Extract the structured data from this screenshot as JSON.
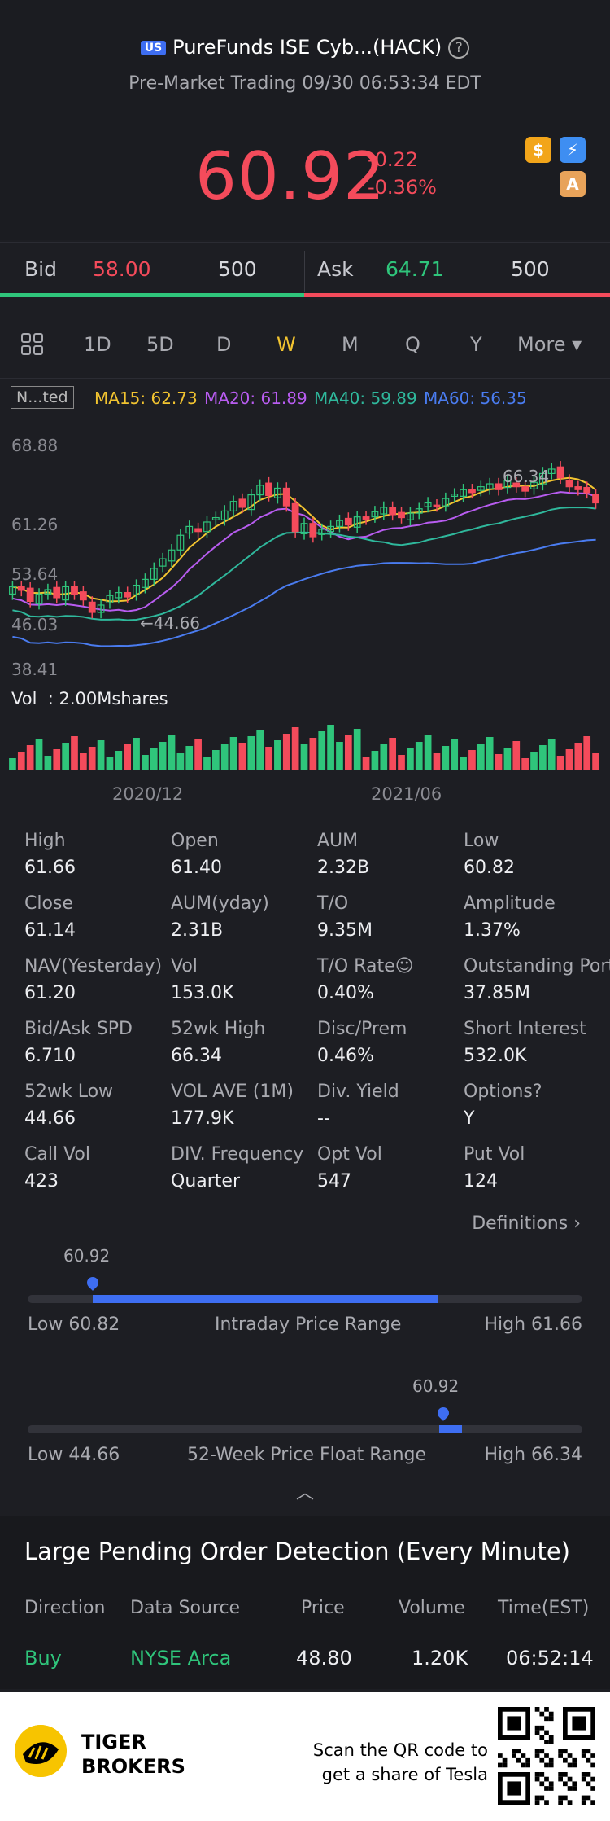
{
  "header": {
    "market_badge": "US",
    "title": "PureFunds ISE Cyb...(HACK)",
    "subtitle": "Pre-Market Trading 09/30 06:53:34 EDT",
    "price": "60.92",
    "change": "-0.22",
    "change_pct": "-0.36%",
    "icon_dollar": "$",
    "icon_flash": "⚡",
    "icon_a": "A"
  },
  "bidask": {
    "bid_label": "Bid",
    "bid_price": "58.00",
    "bid_size": "500",
    "ask_label": "Ask",
    "ask_price": "64.71",
    "ask_size": "500"
  },
  "tabs": [
    "1D",
    "5D",
    "D",
    "W",
    "M",
    "Q",
    "Y"
  ],
  "tabs_more": "More ▾",
  "active_tab": "W",
  "indicators": {
    "adj": "N...ted",
    "ma15": "MA15: 62.73",
    "ma20": "MA20: 61.89",
    "ma40": "MA40: 59.89",
    "ma60": "MA60: 56.35"
  },
  "chart_data": {
    "type": "candlestick",
    "y_ticks": [
      "68.88",
      "61.26",
      "53.64",
      "46.03",
      "38.41"
    ],
    "high_marker": "66.34",
    "low_marker": "44.66",
    "volume_label": "Vol  : 2.00Mshares",
    "x_ticks": [
      "2020/12",
      "2021/06"
    ],
    "ylim": [
      38.41,
      68.88
    ],
    "colors": {
      "up": "#2fc57b",
      "down": "#f44b5b",
      "ma15": "#f2c430",
      "ma20": "#b85cf0",
      "ma40": "#2fb89c",
      "ma60": "#4a7cf0"
    }
  },
  "stats": [
    [
      {
        "l": "High",
        "v": "61.66"
      },
      {
        "l": "Open",
        "v": "61.40"
      },
      {
        "l": "AUM",
        "v": "2.32B"
      },
      {
        "l": "Low",
        "v": "60.82"
      }
    ],
    [
      {
        "l": "Close",
        "v": "61.14"
      },
      {
        "l": "AUM(yday)",
        "v": "2.31B"
      },
      {
        "l": "T/O",
        "v": "9.35M"
      },
      {
        "l": "Amplitude",
        "v": "1.37%"
      }
    ],
    [
      {
        "l": "NAV(Yesterday)",
        "v": "61.20"
      },
      {
        "l": "Vol",
        "v": "153.0K"
      },
      {
        "l": "T/O Rate☺",
        "v": "0.40%"
      },
      {
        "l": "Outstanding Port",
        "v": "37.85M"
      }
    ],
    [
      {
        "l": "Bid/Ask SPD",
        "v": "6.710"
      },
      {
        "l": "52wk High",
        "v": "66.34"
      },
      {
        "l": "Disc/Prem",
        "v": "0.46%"
      },
      {
        "l": "Short Interest",
        "v": "532.0K"
      }
    ],
    [
      {
        "l": "52wk Low",
        "v": "44.66"
      },
      {
        "l": "VOL AVE (1M)",
        "v": "177.9K"
      },
      {
        "l": "Div. Yield",
        "v": "--"
      },
      {
        "l": "Options?",
        "v": "Y"
      }
    ],
    [
      {
        "l": "Call Vol",
        "v": "423"
      },
      {
        "l": "DIV. Frequency",
        "v": "Quarter"
      },
      {
        "l": "Opt Vol",
        "v": "547"
      },
      {
        "l": "Put Vol",
        "v": "124"
      }
    ]
  ],
  "definitions": "Definitions ›",
  "intraday": {
    "current": "60.92",
    "low": "Low 60.82",
    "label": "Intraday Price Range",
    "high": "High 61.66",
    "position": 0.12
  },
  "week52": {
    "current": "60.92",
    "low": "Low 44.66",
    "label": "52-Week Price Float Range",
    "high": "High 66.34",
    "position": 0.75
  },
  "collapse": "︿",
  "large_orders": {
    "title": "Large Pending Order Detection (Every Minute)",
    "headers": [
      "Direction",
      "Data Source",
      "Price",
      "Volume",
      "Time(EST)"
    ],
    "rows": [
      [
        "Buy",
        "NYSE Arca",
        "48.80",
        "1.20K",
        "06:52:14"
      ]
    ]
  },
  "footer": {
    "brand_line1": "TIGER",
    "brand_line2": "BROKERS",
    "scan_line1": "Scan the QR code to",
    "scan_line2": "get a share of Tesla"
  }
}
